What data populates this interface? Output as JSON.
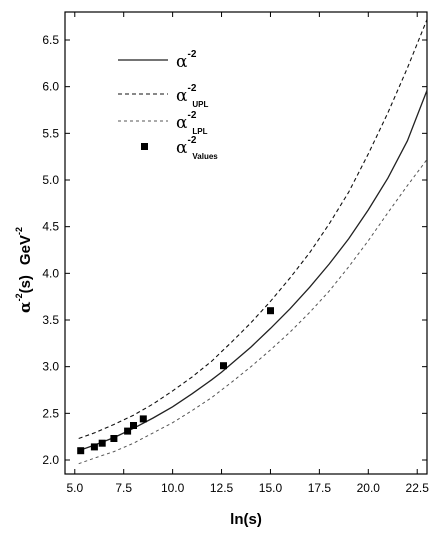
{
  "chart_data": {
    "type": "line",
    "xlabel": "ln(s)",
    "ylabel": {
      "symbol": "α",
      "superscript": "-2",
      "argument": "(s)",
      "unit": "GeV",
      "unit_superscript": "-2"
    },
    "xlim": [
      4.5,
      23.0
    ],
    "ylim": [
      1.85,
      6.8
    ],
    "x_ticks": [
      "5.0",
      "7.5",
      "10.0",
      "12.5",
      "15.0",
      "17.5",
      "20.0",
      "22.5"
    ],
    "y_ticks": [
      "2.0",
      "2.5",
      "3.0",
      "3.5",
      "4.0",
      "4.5",
      "5.0",
      "5.5",
      "6.0",
      "6.5"
    ],
    "x_tick_values": [
      5.0,
      7.5,
      10.0,
      12.5,
      15.0,
      17.5,
      20.0,
      22.5
    ],
    "y_tick_values": [
      2.0,
      2.5,
      3.0,
      3.5,
      4.0,
      4.5,
      5.0,
      5.5,
      6.0,
      6.5
    ],
    "legend_position": "top-left",
    "grid": false,
    "series": [
      {
        "key": "central",
        "legend": {
          "base": "α",
          "sup": "-2",
          "sub": ""
        },
        "style": "solid",
        "color": "#222222",
        "x": [
          5.2,
          6.0,
          7.0,
          8.0,
          9.0,
          10.0,
          11.0,
          12.0,
          12.5,
          13.0,
          14.0,
          15.0,
          16.0,
          17.0,
          18.0,
          19.0,
          20.0,
          21.0,
          22.0,
          23.0
        ],
        "y": [
          2.1,
          2.16,
          2.24,
          2.34,
          2.45,
          2.57,
          2.71,
          2.86,
          2.94,
          3.03,
          3.21,
          3.41,
          3.62,
          3.85,
          4.1,
          4.37,
          4.68,
          5.02,
          5.42,
          5.96
        ]
      },
      {
        "key": "upl",
        "legend": {
          "base": "α",
          "sup": "-2",
          "sub": "UPL"
        },
        "style": "dashed",
        "color": "#111111",
        "x": [
          5.2,
          6.0,
          7.0,
          8.0,
          9.0,
          10.0,
          11.0,
          12.0,
          12.5,
          13.0,
          14.0,
          15.0,
          16.0,
          17.0,
          18.0,
          19.0,
          20.0,
          21.0,
          22.0,
          23.0
        ],
        "y": [
          2.23,
          2.29,
          2.38,
          2.48,
          2.6,
          2.74,
          2.89,
          3.06,
          3.16,
          3.26,
          3.47,
          3.7,
          3.95,
          4.22,
          4.53,
          4.87,
          5.28,
          5.72,
          6.2,
          6.72
        ]
      },
      {
        "key": "lpl",
        "legend": {
          "base": "α",
          "sup": "-2",
          "sub": "LPL"
        },
        "style": "dashed-light",
        "color": "#555555",
        "x": [
          5.2,
          6.0,
          7.0,
          8.0,
          9.0,
          10.0,
          11.0,
          12.0,
          12.5,
          13.0,
          14.0,
          15.0,
          16.0,
          17.0,
          18.0,
          19.0,
          20.0,
          21.0,
          22.0,
          23.0
        ],
        "y": [
          1.96,
          2.02,
          2.09,
          2.18,
          2.29,
          2.4,
          2.53,
          2.67,
          2.75,
          2.83,
          3.0,
          3.18,
          3.37,
          3.58,
          3.81,
          4.07,
          4.35,
          4.65,
          4.94,
          5.22
        ]
      }
    ],
    "points": {
      "legend": {
        "base": "α",
        "sup": "-2",
        "sub": "Values"
      },
      "marker": "square",
      "color": "#000000",
      "x": [
        5.3,
        6.0,
        6.4,
        7.0,
        7.7,
        8.0,
        8.5,
        12.6,
        15.0
      ],
      "y": [
        2.1,
        2.14,
        2.18,
        2.23,
        2.31,
        2.37,
        2.44,
        3.01,
        3.6
      ]
    }
  }
}
